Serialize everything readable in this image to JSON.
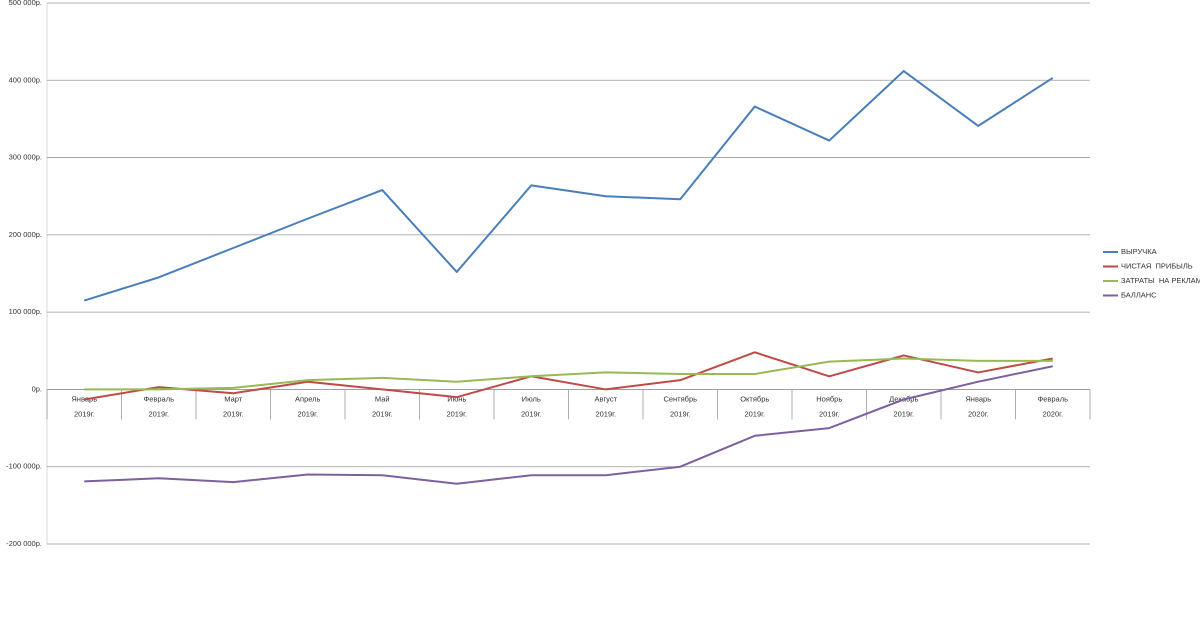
{
  "chart_data": {
    "type": "line",
    "categories": [
      "Январь",
      "Февраль",
      "Март",
      "Апрель",
      "Май",
      "Июнь",
      "Июль",
      "Август",
      "Сентябрь",
      "Октябрь",
      "Ноябрь",
      "Декабрь",
      "Январь",
      "Февраль"
    ],
    "category_years": [
      "2019г.",
      "2019г.",
      "2019г.",
      "2019г.",
      "2019г.",
      "2019г.",
      "2019г.",
      "2019г.",
      "2019г.",
      "2019г.",
      "2019г.",
      "2019г.",
      "2020г.",
      "2020г."
    ],
    "series": [
      {
        "name": "ВЫРУЧКА",
        "color": "#4a7ebb",
        "values": [
          115000,
          145000,
          183000,
          221000,
          258000,
          152000,
          264000,
          250000,
          246000,
          366000,
          322000,
          412000,
          341000,
          403000
        ]
      },
      {
        "name": "ЧИСТАЯ  ПРИБЫЛЬ",
        "color": "#be4b48",
        "values": [
          -13000,
          3000,
          -5000,
          10000,
          0,
          -10000,
          17000,
          0,
          12000,
          48000,
          17000,
          44000,
          22000,
          40000
        ]
      },
      {
        "name": "ЗАТРАТЫ  НА РЕКЛАМУ",
        "color": "#98b954",
        "values": [
          0,
          0,
          2000,
          12000,
          15000,
          10000,
          17000,
          22000,
          20000,
          20000,
          36000,
          40000,
          37000,
          37000
        ]
      },
      {
        "name": "БАЛЛАНС",
        "color": "#7d60a0",
        "values": [
          -119000,
          -115000,
          -120000,
          -110000,
          -111000,
          -122000,
          -111000,
          -111000,
          -100000,
          -60000,
          -50000,
          -13000,
          10000,
          30000
        ]
      }
    ],
    "ylim": [
      -200000,
      500000
    ],
    "yticks": [
      {
        "value": -200000,
        "label": "-200 000р."
      },
      {
        "value": -100000,
        "label": "-100 000р."
      },
      {
        "value": 0,
        "label": "0р."
      },
      {
        "value": 100000,
        "label": "100 000р."
      },
      {
        "value": 200000,
        "label": "200 000р."
      },
      {
        "value": 300000,
        "label": "300 000р."
      },
      {
        "value": 400000,
        "label": "400 000р."
      },
      {
        "value": 500000,
        "label": "500 000р."
      }
    ],
    "grid": true,
    "legend": "right"
  }
}
